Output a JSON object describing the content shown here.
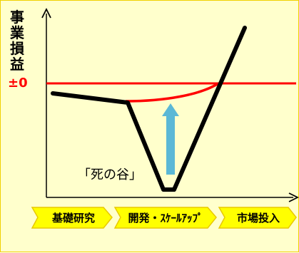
{
  "y_axis_label": "事業損益",
  "zero_label": "±0",
  "valley_label": "「死の谷」",
  "phases": [
    {
      "label": "基礎研究"
    },
    {
      "label": "開発・ｽｹｰﾙｱｯﾌﾟ"
    },
    {
      "label": "市場投入"
    }
  ],
  "colors": {
    "background": "#ffffcc",
    "border": "#f0d000",
    "zero_line": "#ff0000",
    "arrow": "#5bb8d6",
    "phase_fill": "#ffff00",
    "phase_stroke": "#e8c800",
    "curve": "#000000"
  },
  "icons": {
    "up_arrow": "up-arrow-icon"
  }
}
